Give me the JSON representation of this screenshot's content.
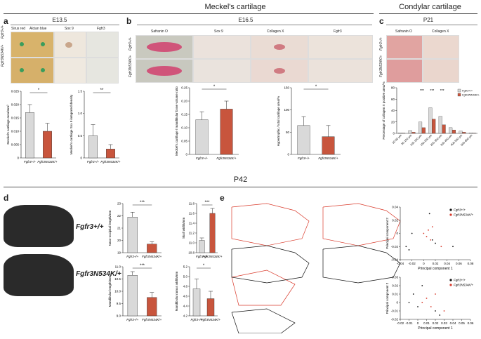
{
  "figure": {
    "meckel_title": "Meckel's cartilage",
    "condylar_title": "Condylar cartilage",
    "p42_title": "P42",
    "panels": {
      "a": {
        "letter": "a",
        "stage": "E13.5",
        "stains": [
          "Sirus red",
          "Alcian blue",
          "Sox 9",
          "Fgfr3"
        ],
        "rows": [
          "Fgfr3+/+",
          "Fgfr3N534K/+"
        ]
      },
      "b": {
        "letter": "b",
        "stage": "E16.5",
        "stains": [
          "Safranin O",
          "Sox 9",
          "Collagen X",
          "Fgfr3"
        ],
        "rows": [
          "Fgfr3+/+",
          "Fgfr3N534K/+"
        ]
      },
      "c": {
        "letter": "c",
        "stage": "P21",
        "stains": [
          "Safranin O",
          "Collagen X"
        ],
        "rows": [
          "Fgfr3+/+",
          "Fgfr3N534K/+"
        ]
      },
      "d": {
        "letter": "d",
        "rows": [
          "Fgfr3+/+",
          "Fgfr3N534K/+"
        ]
      },
      "e": {
        "letter": "e",
        "legend": [
          "Fgfr3+/+",
          "Fgfr3N534K/+"
        ]
      }
    }
  },
  "colors": {
    "wt": "#d9d9d9",
    "mut": "#c8553d",
    "red": "#d93a2b",
    "black": "#111111"
  },
  "chart_data": [
    {
      "id": "a1",
      "type": "bar",
      "ylabel": "Meckel's cartilage area/mm²",
      "categories": [
        "Fgfr3+/+",
        "Fgfr3N534K/+"
      ],
      "values": [
        0.017,
        0.01
      ],
      "errors": [
        0.003,
        0.003
      ],
      "ylim": [
        0,
        0.025
      ],
      "yticks": [
        0,
        0.005,
        0.01,
        0.015,
        0.02,
        0.025
      ],
      "yticklabels": [
        "0",
        "0.005",
        "0.010",
        "0.015",
        "0.020",
        "0.025"
      ],
      "significance": "*"
    },
    {
      "id": "a2",
      "type": "bar",
      "ylabel": "Meckel's cartilage Sox 9 integrated density",
      "categories": [
        "Fgfr3+/+",
        "Fgfr3N534K/+"
      ],
      "values": [
        0.5,
        0.2
      ],
      "errors": [
        0.25,
        0.1
      ],
      "ylim": [
        0,
        1.5
      ],
      "yticks": [
        0,
        0.5,
        1.0,
        1.5
      ],
      "yticklabels": [
        "0",
        "0.5",
        "1.0",
        "1.5"
      ],
      "significance": "**"
    },
    {
      "id": "b1",
      "type": "bar",
      "ylabel": "Meckel's cartilage / mandibular bone volume ratio",
      "categories": [
        "Fgfr3+/+",
        "Fgfr3N534K/+"
      ],
      "values": [
        0.13,
        0.17
      ],
      "errors": [
        0.03,
        0.03
      ],
      "ylim": [
        0,
        0.25
      ],
      "yticks": [
        0,
        0.05,
        0.1,
        0.15,
        0.2,
        0.25
      ],
      "yticklabels": [
        "0",
        "0.05",
        "0.10",
        "0.15",
        "0.20",
        "0.25"
      ],
      "significance": "*"
    },
    {
      "id": "b2",
      "type": "bar",
      "ylabel": "Hypertrophic / total cartilage area/%",
      "categories": [
        "Fgfr3+/+",
        "Fgfr3N534K/+"
      ],
      "values": [
        65,
        40
      ],
      "errors": [
        20,
        25
      ],
      "ylim": [
        0,
        150
      ],
      "yticks": [
        0,
        50,
        100,
        150
      ],
      "yticklabels": [
        "0",
        "50",
        "100",
        "150"
      ],
      "significance": "*"
    },
    {
      "id": "c1",
      "type": "bar",
      "ylabel": "Percentage of collagen X positive area/%",
      "categories": [
        "30-50 μm",
        "50-100 μm",
        "100-150 μm",
        "150-200 μm",
        "200-300 μm",
        "300-400 μm",
        "400-500 μm",
        "500-600 μm"
      ],
      "series": [
        {
          "name": "Fgfr3+/+",
          "values": [
            1,
            5,
            20,
            45,
            30,
            10,
            4,
            1
          ]
        },
        {
          "name": "Fgfr3N534K/+",
          "values": [
            0.5,
            2,
            10,
            25,
            15,
            6,
            2,
            0.5
          ]
        }
      ],
      "ylim": [
        0,
        80
      ],
      "yticks": [
        0,
        20,
        40,
        60,
        80
      ],
      "yticklabels": [
        "0",
        "20",
        "40",
        "60",
        "80"
      ],
      "significance": [
        "***",
        "***",
        "***"
      ]
    },
    {
      "id": "d1",
      "type": "bar",
      "ylabel": "Naso-occipital length/mm",
      "categories": [
        "Fgfr3+/+",
        "Fgfr3N534K/+"
      ],
      "values": [
        21.9,
        19.7
      ],
      "errors": [
        0.4,
        0.2
      ],
      "ylim": [
        19,
        23
      ],
      "yticks": [
        19,
        20,
        21,
        22,
        23
      ],
      "yticklabels": [
        "19",
        "20",
        "21",
        "22",
        "23"
      ],
      "significance": "***"
    },
    {
      "id": "d2",
      "type": "bar",
      "ylabel": "Skull width/mm",
      "categories": [
        "Fgfr3+/+",
        "Fgfr3N534K/+"
      ],
      "values": [
        11.05,
        11.6
      ],
      "errors": [
        0.05,
        0.1
      ],
      "ylim": [
        10.8,
        11.8
      ],
      "yticks": [
        10.8,
        11.0,
        11.2,
        11.4,
        11.6,
        11.8
      ],
      "yticklabels": [
        "10.8",
        "11.0",
        "11.2",
        "11.4",
        "11.6",
        "11.8"
      ],
      "significance": "***"
    },
    {
      "id": "d3",
      "type": "bar",
      "ylabel": "Mandibular length/mm",
      "categories": [
        "Fgfr3+/+",
        "Fgfr3N534K/+"
      ],
      "values": [
        10.65,
        9.75
      ],
      "errors": [
        0.15,
        0.2
      ],
      "ylim": [
        9.0,
        11.0
      ],
      "yticks": [
        9.0,
        9.5,
        10.0,
        10.5,
        11.0
      ],
      "yticklabels": [
        "9.0",
        "9.5",
        "10.0",
        "10.5",
        "11.0"
      ],
      "significance": "***"
    },
    {
      "id": "d4",
      "type": "bar",
      "ylabel": "Mandibular ramus width/mm",
      "categories": [
        "Fgfr3+/+",
        "Fgfr3N534K/+"
      ],
      "values": [
        4.75,
        4.55
      ],
      "errors": [
        0.2,
        0.15
      ],
      "ylim": [
        4.2,
        5.2
      ],
      "yticks": [
        4.2,
        4.4,
        4.6,
        4.8,
        5.0,
        5.2
      ],
      "yticklabels": [
        "4.2",
        "4.4",
        "4.6",
        "4.8",
        "5.0",
        "5.2"
      ],
      "significance": "*"
    },
    {
      "id": "e1",
      "type": "scatter",
      "xlabel": "Principal component 1",
      "ylabel": "Principal component 2",
      "xlim": [
        -0.04,
        0.08
      ],
      "ylim": [
        -0.04,
        0.04
      ],
      "xticks": [
        -0.04,
        -0.02,
        0,
        0.02,
        0.04,
        0.06,
        0.08
      ],
      "xticklabels": [
        "-0.04",
        "-0.02",
        "0",
        "0.02",
        "0.04",
        "0.06",
        "0.08"
      ],
      "yticks": [
        -0.04,
        -0.02,
        0,
        0.02,
        0.04
      ],
      "yticklabels": [
        "-0.04",
        "-0.02",
        "0",
        "0.02",
        "0.04"
      ],
      "series": [
        {
          "name": "Fgfr3+/+",
          "x": [
            -0.03,
            -0.025,
            0.01,
            0.015,
            0.02,
            0.05,
            -0.02
          ],
          "y": [
            -0.02,
            -0.025,
            0.03,
            -0.01,
            -0.015,
            -0.02,
            0.0
          ]
        },
        {
          "name": "Fgfr3N534K/+",
          "x": [
            0.0,
            0.005,
            0.012,
            0.03,
            0.015,
            0.008
          ],
          "y": [
            0.0,
            -0.005,
            -0.01,
            -0.02,
            0.01,
            0.005
          ]
        }
      ]
    },
    {
      "id": "e2",
      "type": "scatter",
      "xlabel": "Principal component 1",
      "ylabel": "Principal component 2",
      "xlim": [
        -0.02,
        0.06
      ],
      "ylim": [
        -0.02,
        0.03
      ],
      "xticks": [
        -0.02,
        -0.01,
        0,
        0.01,
        0.02,
        0.03,
        0.04,
        0.05,
        0.06
      ],
      "xticklabels": [
        "-0.02",
        "-0.01",
        "0",
        "0.01",
        "0.02",
        "0.03",
        "0.04",
        "0.05",
        "0.06"
      ],
      "yticks": [
        -0.02,
        -0.01,
        0,
        0.01,
        0.02,
        0.03
      ],
      "yticklabels": [
        "-0.02",
        "-0.01",
        "0",
        "0.01",
        "0.02",
        "0.03"
      ],
      "series": [
        {
          "name": "Fgfr3+/+",
          "x": [
            -0.01,
            0.0,
            0.005,
            0.02,
            0.025,
            -0.005
          ],
          "y": [
            0.0,
            -0.005,
            0.02,
            -0.01,
            -0.015,
            0.01
          ]
        },
        {
          "name": "Fgfr3N534K/+",
          "x": [
            0.01,
            0.015,
            0.02,
            0.03,
            0.005
          ],
          "y": [
            0.005,
            -0.005,
            0.01,
            -0.01,
            0.0
          ]
        }
      ]
    }
  ]
}
